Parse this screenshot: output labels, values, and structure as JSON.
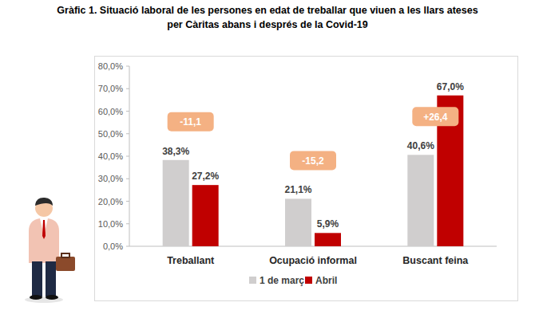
{
  "chart_data": {
    "type": "bar",
    "title": [
      "Gràfic 1. Situació laboral de les persones en edat de treballar que viuen a les llars ateses",
      "per Càritas abans i després de la Covid-19"
    ],
    "categories": [
      "Treballant",
      "Ocupació informal",
      "Buscant feina"
    ],
    "series": [
      {
        "name": "1 de març",
        "color": "#d0cece",
        "values": [
          38.3,
          21.1,
          40.6
        ],
        "value_labels": [
          "38,3%",
          "21,1%",
          "40,6%"
        ]
      },
      {
        "name": "Abril",
        "color": "#c00000",
        "values": [
          27.2,
          5.9,
          67.0
        ],
        "value_labels": [
          "27,2%",
          "5,9%",
          "67,0%"
        ]
      }
    ],
    "annotations": [
      {
        "text": "-11,1",
        "category": "Treballant"
      },
      {
        "text": "-15,2",
        "category": "Ocupació informal"
      },
      {
        "text": "+26,4",
        "category": "Buscant feina"
      }
    ],
    "ylim": [
      0,
      80
    ],
    "yticks": [
      {
        "value": 0,
        "label": "0,0%"
      },
      {
        "value": 10,
        "label": "10,0%"
      },
      {
        "value": 20,
        "label": "20,0%"
      },
      {
        "value": 30,
        "label": "30,0%"
      },
      {
        "value": 40,
        "label": "40,0%"
      },
      {
        "value": 50,
        "label": "50,0%"
      },
      {
        "value": 60,
        "label": "60,0%"
      },
      {
        "value": 70,
        "label": "70,0%"
      },
      {
        "value": 80,
        "label": "80,0%"
      }
    ],
    "grid": false,
    "data_labels": true,
    "legend": "bottom"
  }
}
